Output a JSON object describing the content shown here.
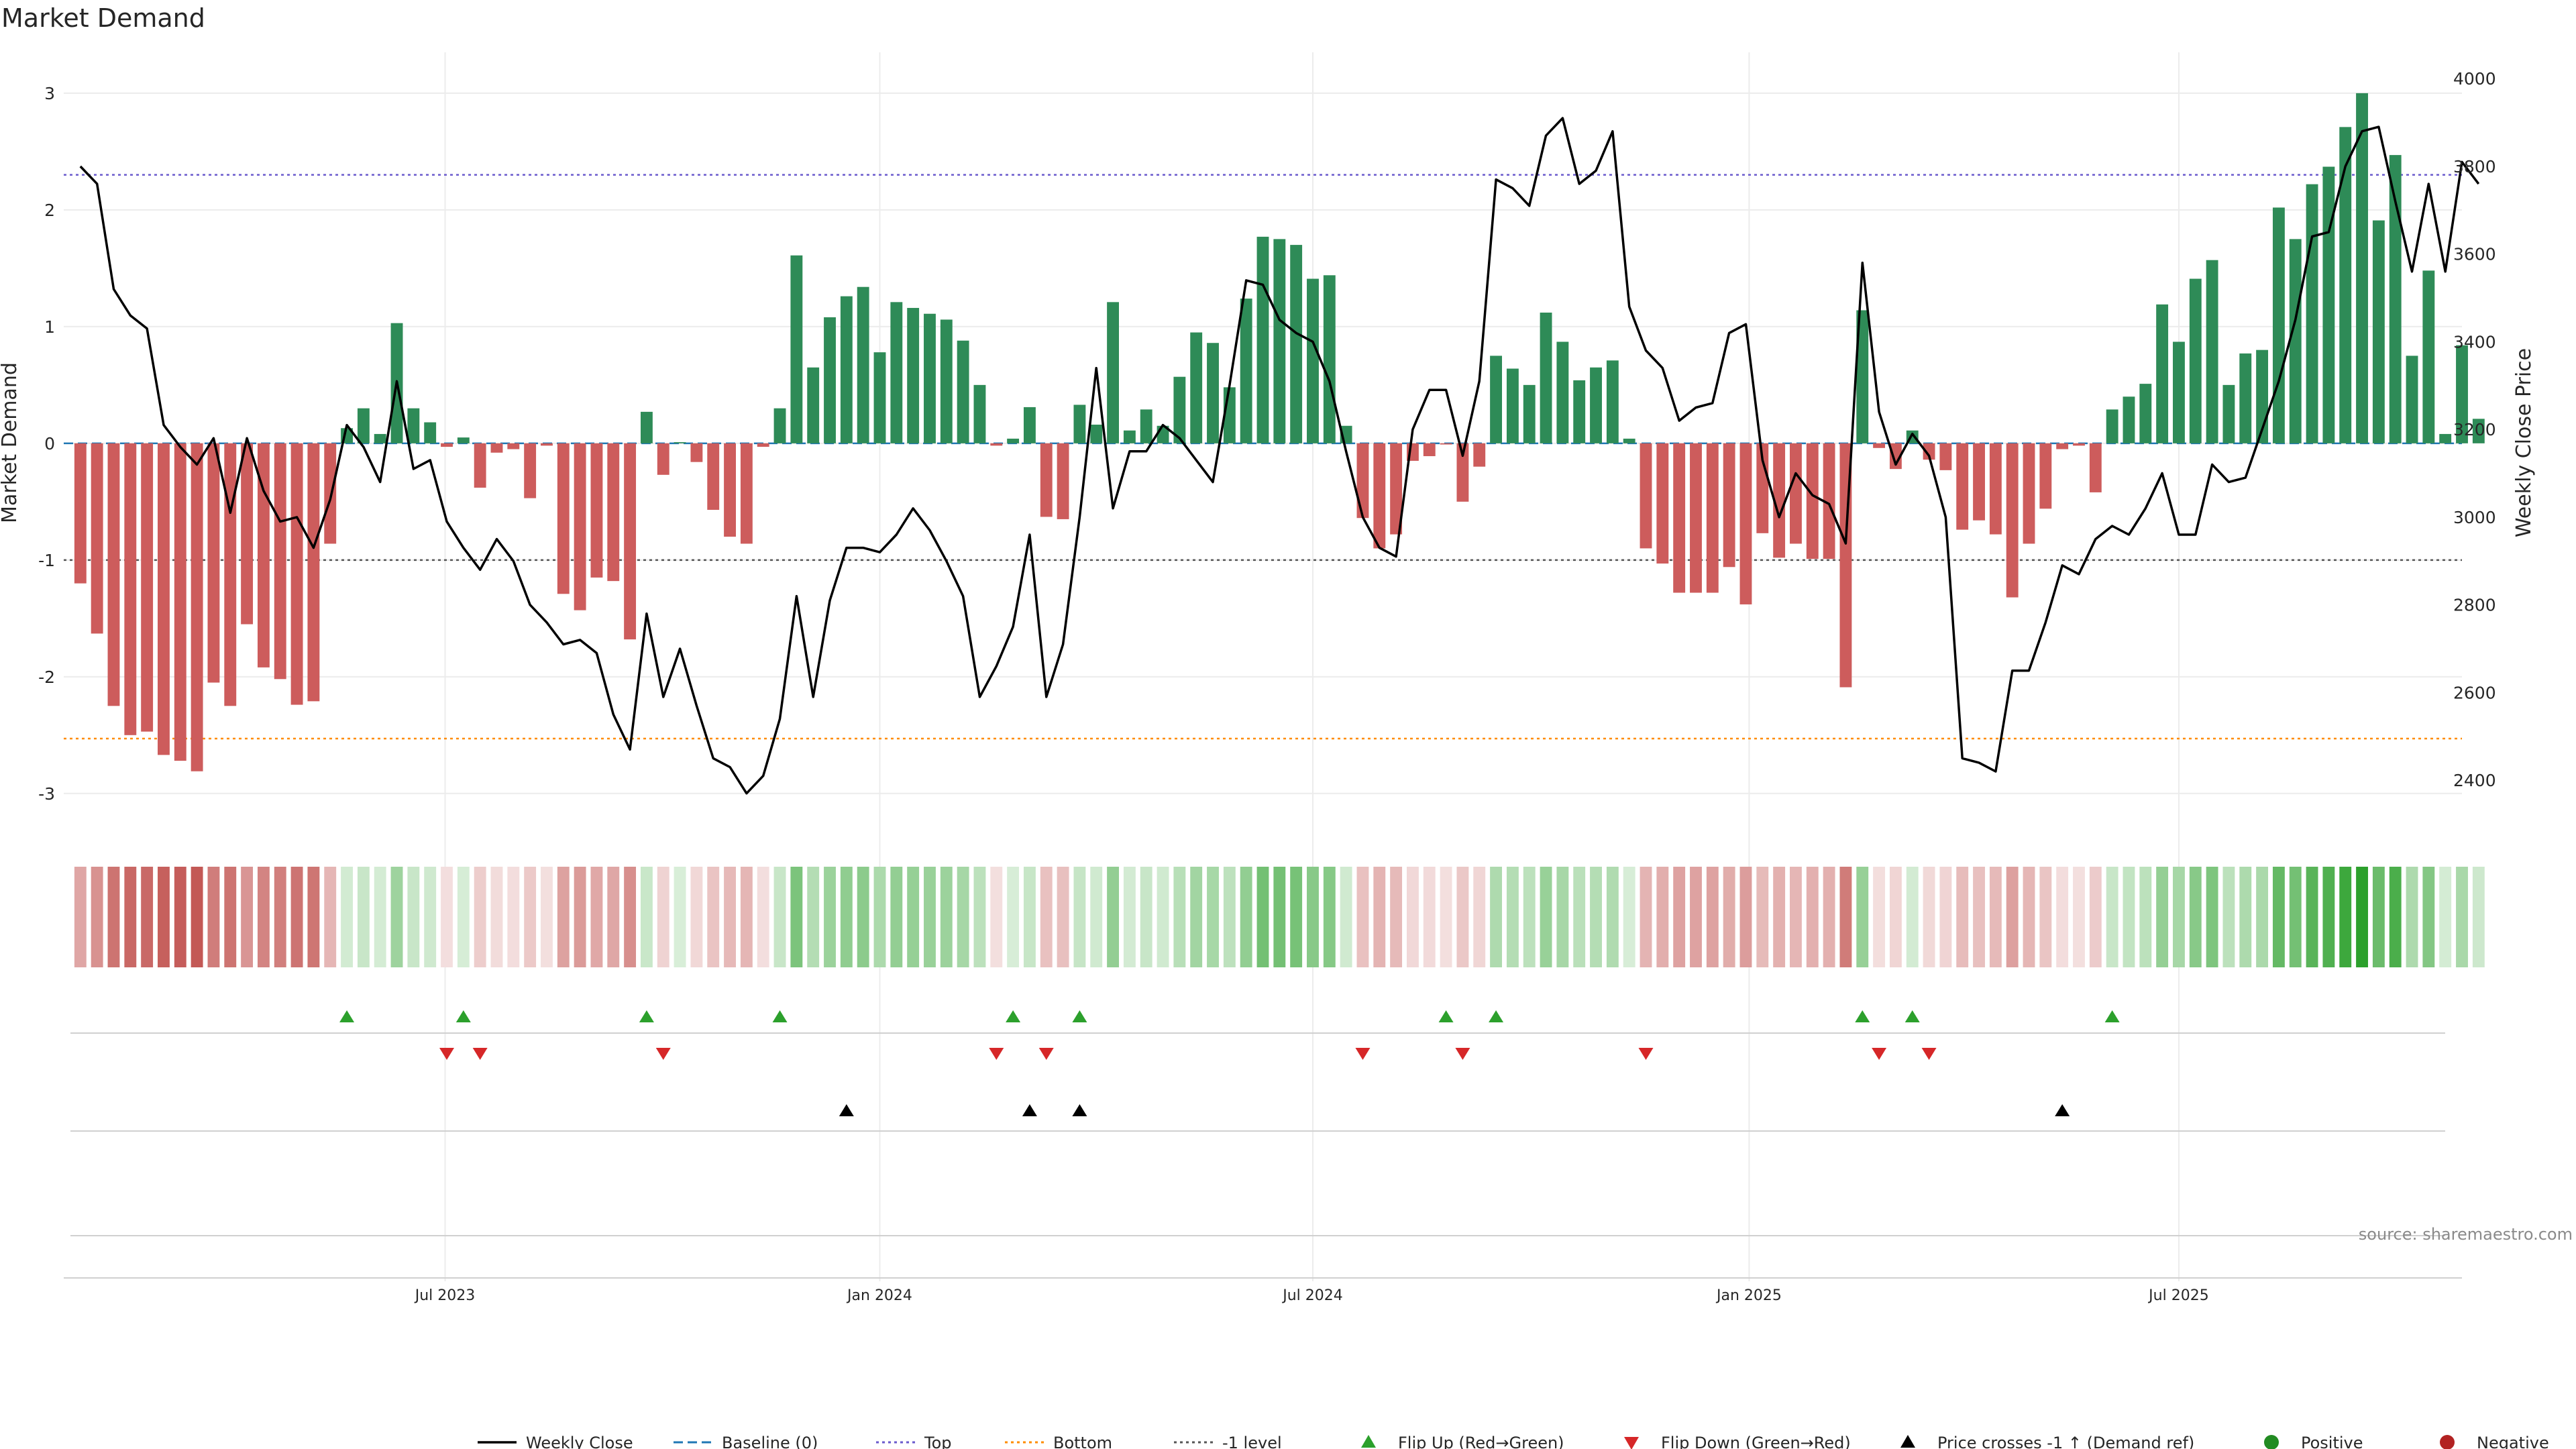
{
  "source_label": "source: sharemaestro.com",
  "colors": {
    "positive_bar": "#2e8b57",
    "negative_bar": "#cd5c5c",
    "price_line": "#000000",
    "baseline": "#1f77b4",
    "top_line": "#6a5acd",
    "bottom_line": "#ff8c00",
    "neg1_line": "#555555",
    "flip_up": "#2ca02c",
    "flip_down": "#d62728",
    "cross": "#000000",
    "positive_dot": "#228b22",
    "negative_dot": "#b22222"
  },
  "chart_data": {
    "type": "bar+line",
    "title": "Market Demand",
    "ylabel_left": "Market Demand",
    "ylabel_right": "Weekly Close Price",
    "ylim_left": [
      -3.3,
      3.35
    ],
    "ylim_right": [
      2290,
      4060
    ],
    "yticks_left": [
      3,
      2,
      1,
      0,
      -1,
      -2,
      -3
    ],
    "yticks_right": [
      4000,
      3800,
      3600,
      3400,
      3200,
      3000,
      2800,
      2600,
      2400
    ],
    "xlim": [
      -1,
      143
    ],
    "x_ticks": [
      {
        "label": "Jul 2023",
        "pos": 21.9
      },
      {
        "label": "Jan 2024",
        "pos": 48.0
      },
      {
        "label": "Jul 2024",
        "pos": 74.0
      },
      {
        "label": "Jan 2025",
        "pos": 100.2
      },
      {
        "label": "Jul 2025",
        "pos": 126.0
      }
    ],
    "reference_lines": {
      "top": 2.3,
      "bottom": -2.53,
      "neg1_level": -1.0,
      "baseline": 0
    },
    "demand": [
      -1.2,
      -1.63,
      -2.25,
      -2.5,
      -2.47,
      -2.67,
      -2.72,
      -2.81,
      -2.05,
      -2.25,
      -1.55,
      -1.92,
      -2.02,
      -2.24,
      -2.21,
      -0.86,
      0.13,
      0.3,
      0.08,
      1.03,
      0.3,
      0.18,
      -0.03,
      0.05,
      -0.38,
      -0.08,
      -0.05,
      -0.47,
      -0.02,
      -1.29,
      -1.43,
      -1.15,
      -1.18,
      -1.68,
      0.27,
      -0.27,
      0.01,
      -0.16,
      -0.57,
      -0.8,
      -0.86,
      -0.03,
      0.3,
      1.61,
      0.65,
      1.08,
      1.26,
      1.34,
      0.78,
      1.21,
      1.16,
      1.11,
      1.06,
      0.88,
      0.5,
      -0.02,
      0.04,
      0.31,
      -0.63,
      -0.65,
      0.33,
      0.16,
      1.21,
      0.11,
      0.29,
      0.15,
      0.57,
      0.95,
      0.86,
      0.48,
      1.24,
      1.77,
      1.75,
      1.7,
      1.41,
      1.44,
      0.15,
      -0.64,
      -0.9,
      -0.78,
      -0.15,
      -0.11,
      -0.01,
      -0.5,
      -0.2,
      0.75,
      0.64,
      0.5,
      1.12,
      0.87,
      0.54,
      0.65,
      0.71,
      0.04,
      -0.9,
      -1.03,
      -1.28,
      -1.28,
      -1.28,
      -1.06,
      -1.38,
      -0.77,
      -0.98,
      -0.86,
      -0.99,
      -0.99,
      -2.09,
      1.14,
      -0.04,
      -0.22,
      0.11,
      -0.14,
      -0.23,
      -0.74,
      -0.66,
      -0.78,
      -1.32,
      -0.86,
      -0.56,
      -0.05,
      -0.02,
      -0.42,
      0.29,
      0.4,
      0.51,
      1.19,
      0.87,
      1.41,
      1.57,
      0.5,
      0.77,
      0.8,
      2.02,
      1.75,
      2.22,
      2.37,
      2.71,
      3.0,
      1.91,
      2.47,
      0.75,
      1.48,
      0.08,
      0.84,
      0.21
    ],
    "weekly_close": [
      3800,
      3760,
      3520,
      3460,
      3430,
      3210,
      3160,
      3120,
      3180,
      3010,
      3180,
      3060,
      2990,
      3000,
      2930,
      3040,
      3210,
      3160,
      3080,
      3310,
      3110,
      3130,
      2990,
      2930,
      2880,
      2950,
      2900,
      2800,
      2760,
      2710,
      2720,
      2690,
      2550,
      2470,
      2780,
      2590,
      2700,
      2570,
      2450,
      2430,
      2370,
      2410,
      2540,
      2820,
      2590,
      2810,
      2930,
      2930,
      2920,
      2960,
      3020,
      2970,
      2900,
      2820,
      2590,
      2660,
      2750,
      2960,
      2590,
      2710,
      3000,
      3340,
      3020,
      3150,
      3150,
      3210,
      3180,
      3130,
      3080,
      3300,
      3540,
      3530,
      3450,
      3420,
      3400,
      3310,
      3150,
      3000,
      2930,
      2910,
      3200,
      3290,
      3290,
      3140,
      3310,
      3770,
      3750,
      3710,
      3870,
      3910,
      3760,
      3790,
      3880,
      3480,
      3380,
      3340,
      3220,
      3250,
      3260,
      3420,
      3440,
      3130,
      3000,
      3100,
      3050,
      3030,
      2940,
      3580,
      3240,
      3120,
      3190,
      3140,
      3000,
      2450,
      2440,
      2420,
      2650,
      2650,
      2760,
      2890,
      2870,
      2950,
      2980,
      2960,
      3020,
      3100,
      2960,
      2960,
      3120,
      3080,
      3090,
      3200,
      3310,
      3450,
      3640,
      3650,
      3800,
      3880,
      3890,
      3720,
      3560,
      3760,
      3560,
      3810,
      3760
    ],
    "heat_strip": "demand value per week, shaded green (positive) / red (negative), intensity by magnitude",
    "flip_up_idx": [
      16,
      23,
      34,
      42,
      56,
      60,
      82,
      85,
      107,
      110,
      122
    ],
    "flip_down_idx": [
      22,
      24,
      35,
      55,
      58,
      77,
      83,
      94,
      108,
      111
    ],
    "price_cross_idx": [
      46,
      57,
      60,
      119
    ]
  },
  "legend": [
    {
      "label": "Weekly Close",
      "kind": "line",
      "color": "#000000"
    },
    {
      "label": "Baseline (0)",
      "kind": "dash",
      "color": "#1f77b4"
    },
    {
      "label": "Top",
      "kind": "dot",
      "color": "#6a5acd"
    },
    {
      "label": "Bottom",
      "kind": "dot",
      "color": "#ff8c00"
    },
    {
      "label": "-1 level",
      "kind": "dot",
      "color": "#555555"
    },
    {
      "label": "Flip Up (Red→Green)",
      "kind": "tri-up",
      "color": "#2ca02c"
    },
    {
      "label": "Flip Down (Green→Red)",
      "kind": "tri-down",
      "color": "#d62728"
    },
    {
      "label": "Price crosses -1 ↑ (Demand ref)",
      "kind": "tri-up",
      "color": "#000000"
    },
    {
      "label": "Positive",
      "kind": "dot-circle",
      "color": "#228b22"
    },
    {
      "label": "Negative",
      "kind": "dot-circle",
      "color": "#b22222"
    }
  ]
}
